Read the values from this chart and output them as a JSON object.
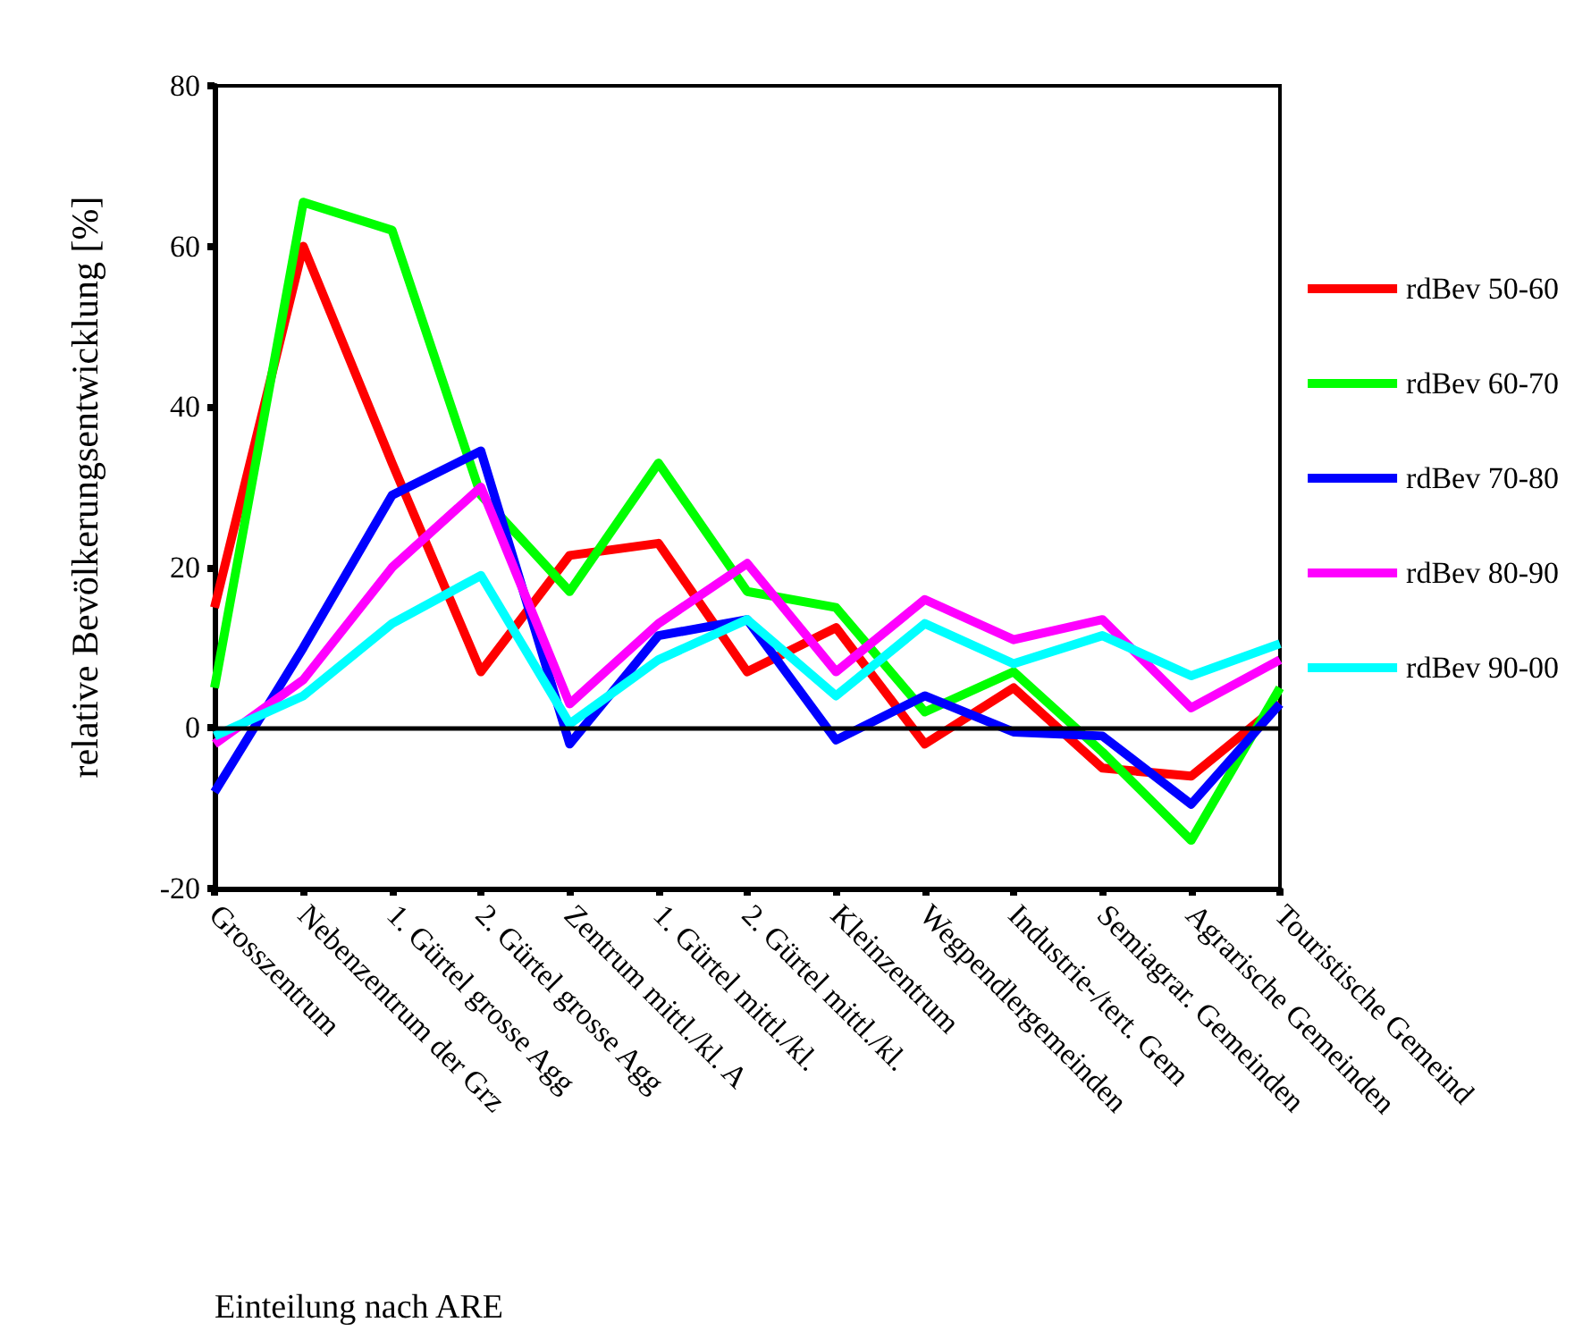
{
  "chart_data": {
    "type": "line",
    "xlabel": "Einteilung nach ARE",
    "ylabel": "relative Bevölkerungsentwicklung [%]",
    "categories": [
      "Grosszentrum",
      "Nebenzentrum der Grz",
      "1. Gürtel grosse Agg",
      "2. Gürtel grosse Agg",
      "Zentrum mittl./kl. A",
      "1. Gürtel mittl./kl.",
      "2. Gürtel mittl./kl.",
      "Kleinzentrum",
      "Wegpendlergemeinden",
      "Industrie-/tert. Gem",
      "Semiagrar. Gemeinden",
      "Agrarische Gemeinden",
      "Touristische Gemeind"
    ],
    "series": [
      {
        "name": "rdBev 50-60",
        "color": "#ff0000",
        "values": [
          15,
          60,
          33,
          7,
          21.5,
          23,
          7,
          12.5,
          -2,
          5,
          -5,
          -6,
          3
        ]
      },
      {
        "name": "rdBev 60-70",
        "color": "#00ff00",
        "values": [
          5,
          65.5,
          62,
          29,
          17,
          33,
          17,
          15,
          2,
          7,
          -3,
          -14,
          5
        ]
      },
      {
        "name": "rdBev 70-80",
        "color": "#0000ff",
        "values": [
          -8,
          10,
          29,
          34.5,
          -2,
          11.5,
          13.5,
          -1.5,
          4,
          -0.5,
          -1,
          -9.5,
          3
        ]
      },
      {
        "name": "rdBev 80-90",
        "color": "#ff00ff",
        "values": [
          -2,
          6,
          20,
          30,
          3,
          13,
          20.5,
          7,
          16,
          11,
          13.5,
          2.5,
          8.5
        ]
      },
      {
        "name": "rdBev 90-00",
        "color": "#00ffff",
        "values": [
          -1,
          4,
          13,
          19,
          0.5,
          8.5,
          13.5,
          4,
          13,
          8,
          11.5,
          6.5,
          10.5
        ]
      }
    ],
    "ylim": [
      -20,
      80
    ],
    "yticks": [
      -20,
      0,
      20,
      40,
      60,
      80
    ],
    "ref_lines": [
      {
        "axis": "y",
        "value": 0,
        "color": "#000000"
      }
    ],
    "legend": "right",
    "grid": false,
    "marker": "none",
    "line_style": "solid"
  }
}
